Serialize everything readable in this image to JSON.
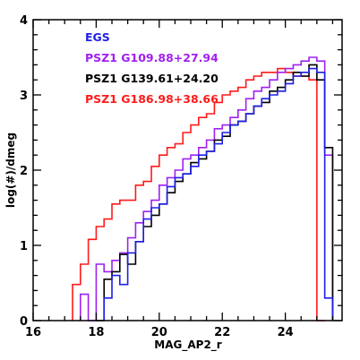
{
  "chart_data": {
    "type": "step-histogram",
    "title": "",
    "xlabel": "MAG_AP2_r",
    "ylabel": "log(#)/dmeg",
    "xlim": [
      16,
      25.8
    ],
    "ylim": [
      0,
      4
    ],
    "x_ticks": [
      16,
      18,
      20,
      22,
      24
    ],
    "y_ticks": [
      0,
      1,
      2,
      3,
      4
    ],
    "bin_width": 0.25,
    "legend_position": "top-left",
    "series": [
      {
        "name": "EGS",
        "color": "#1f1fe6",
        "bin_starts": [
          18.25,
          18.5,
          18.75,
          19.0,
          19.25,
          19.5,
          19.75,
          20.0,
          20.25,
          20.5,
          20.75,
          21.0,
          21.25,
          21.5,
          21.75,
          22.0,
          22.25,
          22.5,
          22.75,
          23.0,
          23.25,
          23.5,
          23.75,
          24.0,
          24.25,
          24.5,
          24.75,
          25.0,
          25.25
        ],
        "values": [
          0.3,
          0.6,
          0.48,
          0.9,
          1.05,
          1.35,
          1.5,
          1.55,
          1.78,
          1.9,
          1.95,
          2.05,
          2.2,
          2.25,
          2.35,
          2.5,
          2.6,
          2.65,
          2.75,
          2.85,
          2.95,
          3.0,
          3.05,
          3.15,
          3.25,
          3.3,
          3.35,
          3.3,
          0.3
        ]
      },
      {
        "name": "PSZ1 G109.88+27.94",
        "color": "#a020f0",
        "bin_starts": [
          17.5,
          17.75,
          18.0,
          18.25,
          18.5,
          18.75,
          19.0,
          19.25,
          19.5,
          19.75,
          20.0,
          20.25,
          20.5,
          20.75,
          21.0,
          21.25,
          21.5,
          21.75,
          22.0,
          22.25,
          22.5,
          22.75,
          23.0,
          23.25,
          23.5,
          23.75,
          24.0,
          24.25,
          24.5,
          24.75,
          25.0,
          25.25
        ],
        "values": [
          0.35,
          0.0,
          0.75,
          0.65,
          0.8,
          0.9,
          1.1,
          1.3,
          1.45,
          1.6,
          1.8,
          1.9,
          2.0,
          2.15,
          2.2,
          2.3,
          2.4,
          2.55,
          2.6,
          2.7,
          2.8,
          2.95,
          3.05,
          3.1,
          3.2,
          3.3,
          3.35,
          3.4,
          3.45,
          3.5,
          3.45,
          2.2
        ]
      },
      {
        "name": "PSZ1 G139.61+24.20",
        "color": "#000000",
        "bin_starts": [
          18.0,
          18.25,
          18.5,
          18.75,
          19.0,
          19.25,
          19.5,
          19.75,
          20.0,
          20.25,
          20.5,
          20.75,
          21.0,
          21.25,
          21.5,
          21.75,
          22.0,
          22.25,
          22.5,
          22.75,
          23.0,
          23.25,
          23.5,
          23.75,
          24.0,
          24.25,
          24.5,
          24.75,
          25.0,
          25.25
        ],
        "values": [
          0.0,
          0.55,
          0.65,
          0.88,
          0.75,
          1.05,
          1.25,
          1.4,
          1.55,
          1.7,
          1.85,
          1.95,
          2.1,
          2.15,
          2.25,
          2.4,
          2.45,
          2.6,
          2.65,
          2.75,
          2.85,
          2.9,
          3.05,
          3.1,
          3.2,
          3.3,
          3.25,
          3.4,
          3.2,
          2.3
        ]
      },
      {
        "name": "PSZ1 G186.98+38.66",
        "color": "#ff1a1a",
        "bin_starts": [
          17.25,
          17.5,
          17.75,
          18.0,
          18.25,
          18.5,
          18.75,
          19.0,
          19.25,
          19.5,
          19.75,
          20.0,
          20.25,
          20.5,
          20.75,
          21.0,
          21.25,
          21.5,
          21.75,
          22.0,
          22.25,
          22.5,
          22.75,
          23.0,
          23.25,
          23.5,
          23.75,
          24.0,
          24.25,
          24.5,
          24.75,
          25.0
        ],
        "values": [
          0.48,
          0.75,
          1.08,
          1.25,
          1.35,
          1.55,
          1.6,
          1.6,
          1.8,
          1.85,
          2.05,
          2.2,
          2.3,
          2.35,
          2.5,
          2.6,
          2.7,
          2.75,
          2.9,
          3.0,
          3.05,
          3.1,
          3.2,
          3.25,
          3.3,
          3.3,
          3.35,
          3.3,
          3.25,
          3.25,
          3.2,
          0.0
        ]
      }
    ]
  }
}
